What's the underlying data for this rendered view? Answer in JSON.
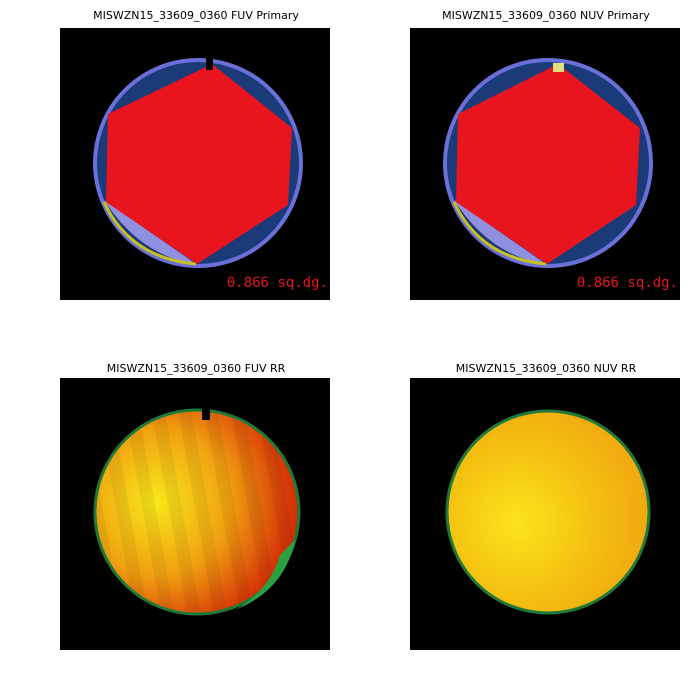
{
  "panels": [
    {
      "title": "MISWZN15_33609_0360 FUV Primary",
      "area": "0.866 sq.dg."
    },
    {
      "title": "MISWZN15_33609_0360 NUV Primary",
      "area": "0.866 sq.dg."
    },
    {
      "title": "MISWZN15_33609_0360 FUV RR"
    },
    {
      "title": "MISWZN15_33609_0360 NUV RR"
    }
  ]
}
